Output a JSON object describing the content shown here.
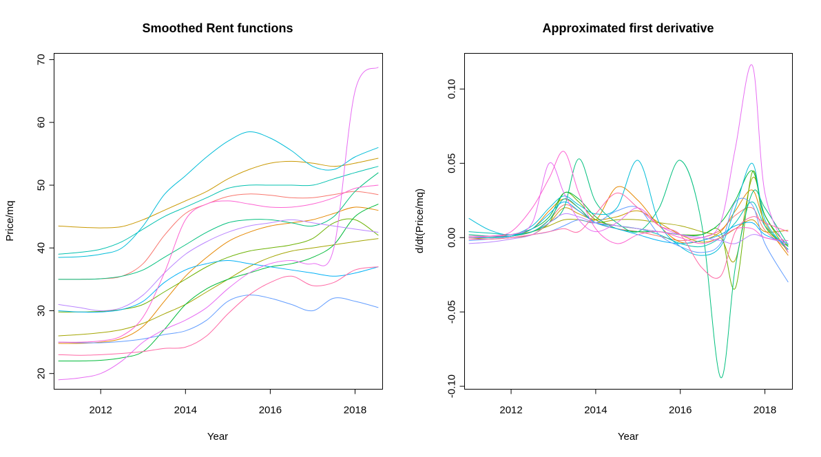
{
  "figure": {
    "palette": [
      "#F8766D",
      "#E58700",
      "#C99800",
      "#A3A500",
      "#6BB100",
      "#00BA38",
      "#00BF7D",
      "#00C0AF",
      "#00BCD8",
      "#00B0F6",
      "#619CFF",
      "#B983FF",
      "#E76BF3",
      "#FD61D1",
      "#FF67A4"
    ]
  },
  "chart_data": [
    {
      "type": "line",
      "title": "Smoothed Rent functions",
      "xlabel": "Year",
      "ylabel": "Price/mq",
      "xlim": [
        2010.9,
        2018.65
      ],
      "ylim": [
        17.5,
        71
      ],
      "xticks": [
        2012,
        2014,
        2016,
        2018
      ],
      "xtick_labels": [
        "2012",
        "2014",
        "2016",
        "2018"
      ],
      "yticks": [
        20,
        30,
        40,
        50,
        60,
        70
      ],
      "ytick_labels": [
        "20",
        "30",
        "40",
        "50",
        "60",
        "70"
      ],
      "grid": false,
      "x": [
        2011.0,
        2011.5,
        2012.0,
        2012.5,
        2013.0,
        2013.5,
        2014.0,
        2014.5,
        2015.0,
        2015.5,
        2016.0,
        2016.5,
        2017.0,
        2017.5,
        2018.0,
        2018.55
      ],
      "series": [
        {
          "color": "#F8766D",
          "values": [
            35.0,
            35.0,
            35.1,
            35.5,
            37.5,
            42.0,
            45.5,
            47.0,
            48.2,
            48.6,
            48.4,
            48.0,
            48.0,
            48.5,
            49.0,
            48.5
          ]
        },
        {
          "color": "#E58700",
          "values": [
            24.8,
            24.8,
            25.0,
            25.6,
            27.5,
            31.5,
            35.5,
            38.5,
            41.0,
            42.5,
            43.5,
            44.0,
            44.5,
            45.5,
            46.5,
            46.0
          ]
        },
        {
          "color": "#C99800",
          "values": [
            43.5,
            43.3,
            43.2,
            43.4,
            44.5,
            46.0,
            47.5,
            49.0,
            51.0,
            52.5,
            53.5,
            53.8,
            53.5,
            53.0,
            53.5,
            54.3
          ]
        },
        {
          "color": "#A3A500",
          "values": [
            26.0,
            26.2,
            26.5,
            27.0,
            28.0,
            29.5,
            31.0,
            33.0,
            35.0,
            37.0,
            38.5,
            39.5,
            40.0,
            40.5,
            41.0,
            41.5
          ]
        },
        {
          "color": "#6BB100",
          "values": [
            29.8,
            29.8,
            29.9,
            30.2,
            31.0,
            33.0,
            35.0,
            37.0,
            38.5,
            39.5,
            40.0,
            40.5,
            41.5,
            44.0,
            44.5,
            42.0
          ]
        },
        {
          "color": "#00BA38",
          "values": [
            22.0,
            22.0,
            22.1,
            22.5,
            23.5,
            27.0,
            31.0,
            33.5,
            35.0,
            36.0,
            37.0,
            37.5,
            38.5,
            40.5,
            45.0,
            47.0
          ]
        },
        {
          "color": "#00BF7D",
          "values": [
            35.0,
            35.0,
            35.1,
            35.5,
            36.5,
            38.5,
            40.5,
            42.5,
            44.0,
            44.5,
            44.5,
            44.0,
            43.5,
            45.0,
            49.0,
            52.0
          ]
        },
        {
          "color": "#00C0AF",
          "values": [
            39.0,
            39.3,
            39.8,
            41.0,
            43.0,
            45.0,
            46.5,
            48.0,
            49.5,
            50.0,
            50.0,
            50.0,
            50.0,
            51.0,
            52.0,
            53.0
          ]
        },
        {
          "color": "#00BCD8",
          "values": [
            38.5,
            38.6,
            39.0,
            40.0,
            43.5,
            48.5,
            51.5,
            54.5,
            57.0,
            58.5,
            57.5,
            55.5,
            53.0,
            52.5,
            54.5,
            56.0
          ]
        },
        {
          "color": "#00B0F6",
          "values": [
            30.0,
            29.8,
            29.8,
            30.2,
            31.5,
            34.5,
            36.5,
            37.5,
            38.0,
            37.5,
            37.0,
            36.5,
            36.0,
            35.5,
            36.0,
            37.0
          ]
        },
        {
          "color": "#619CFF",
          "values": [
            25.0,
            24.9,
            24.9,
            25.1,
            25.5,
            26.2,
            26.8,
            28.5,
            31.5,
            32.5,
            32.0,
            31.0,
            30.0,
            32.0,
            31.5,
            30.5
          ]
        },
        {
          "color": "#B983FF",
          "values": [
            31.0,
            30.5,
            30.0,
            30.5,
            32.5,
            36.0,
            39.0,
            41.0,
            42.5,
            43.5,
            44.0,
            44.5,
            44.0,
            43.5,
            43.0,
            42.5
          ]
        },
        {
          "color": "#E76BF3",
          "values": [
            19.0,
            19.3,
            20.0,
            22.0,
            25.0,
            27.0,
            28.5,
            30.5,
            33.5,
            36.0,
            37.5,
            38.0,
            37.5,
            40.0,
            65.0,
            68.8
          ]
        },
        {
          "color": "#FD61D1",
          "values": [
            25.0,
            25.0,
            25.2,
            26.0,
            29.0,
            36.0,
            44.5,
            47.0,
            47.5,
            47.0,
            46.5,
            46.5,
            47.0,
            48.0,
            49.5,
            50.0
          ]
        },
        {
          "color": "#FF67A4",
          "values": [
            23.0,
            22.9,
            23.0,
            23.2,
            23.5,
            24.0,
            24.2,
            26.0,
            29.5,
            32.5,
            34.5,
            35.5,
            34.0,
            34.5,
            36.5,
            37.0
          ]
        }
      ]
    },
    {
      "type": "line",
      "title": "Approximated first derivative",
      "xlabel": "Year",
      "ylabel": "d/dt(Price/mq)",
      "xlim": [
        2010.9,
        2018.65
      ],
      "ylim": [
        -0.102,
        0.124
      ],
      "xticks": [
        2012,
        2014,
        2016,
        2018
      ],
      "xtick_labels": [
        "2012",
        "2014",
        "2016",
        "2018"
      ],
      "yticks": [
        -0.1,
        -0.05,
        0.0,
        0.05,
        0.1
      ],
      "ytick_labels": [
        "-0.10",
        "-0.05",
        "0.00",
        "0.05",
        "0.10"
      ],
      "grid": false,
      "x": [
        2011.0,
        2011.5,
        2012.0,
        2012.5,
        2012.9,
        2013.25,
        2013.6,
        2014.0,
        2014.5,
        2015.0,
        2015.5,
        2016.0,
        2016.5,
        2016.95,
        2017.3,
        2017.7,
        2018.0,
        2018.55
      ],
      "series": [
        {
          "color": "#F8766D",
          "values": [
            0.0,
            0.0,
            0.001,
            0.004,
            0.012,
            0.022,
            0.018,
            0.01,
            0.006,
            0.004,
            0.001,
            -0.002,
            0.0,
            0.005,
            0.015,
            0.02,
            0.005,
            -0.008
          ]
        },
        {
          "color": "#E58700",
          "values": [
            0.0,
            0.0,
            0.001,
            0.006,
            0.018,
            0.026,
            0.02,
            0.012,
            0.034,
            0.025,
            0.008,
            -0.003,
            -0.002,
            0.004,
            0.018,
            0.032,
            0.01,
            -0.012
          ]
        },
        {
          "color": "#C99800",
          "values": [
            0.0,
            -0.001,
            0.0,
            0.002,
            0.01,
            0.02,
            0.016,
            0.012,
            0.014,
            0.018,
            0.01,
            0.002,
            -0.003,
            0.0,
            0.006,
            0.012,
            0.004,
            0.005
          ]
        },
        {
          "color": "#A3A500",
          "values": [
            0.001,
            0.001,
            0.002,
            0.004,
            0.008,
            0.012,
            0.012,
            0.01,
            0.012,
            0.012,
            0.01,
            0.008,
            0.004,
            0.0,
            -0.015,
            0.04,
            0.015,
            -0.01
          ]
        },
        {
          "color": "#6BB100",
          "values": [
            0.0,
            0.0,
            0.001,
            0.004,
            0.01,
            0.03,
            0.024,
            0.012,
            0.008,
            0.006,
            0.004,
            0.002,
            0.002,
            0.004,
            -0.034,
            0.044,
            0.008,
            -0.006
          ]
        },
        {
          "color": "#00BA38",
          "values": [
            0.0,
            0.0,
            0.002,
            0.006,
            0.014,
            0.03,
            0.026,
            0.014,
            0.006,
            0.004,
            0.004,
            0.002,
            0.002,
            0.01,
            0.025,
            0.045,
            0.015,
            -0.006
          ]
        },
        {
          "color": "#00BF7D",
          "values": [
            0.002,
            0.001,
            0.001,
            0.004,
            0.01,
            0.02,
            0.053,
            0.024,
            0.01,
            0.004,
            0.02,
            0.052,
            0.01,
            -0.094,
            -0.02,
            0.03,
            0.02,
            -0.005
          ]
        },
        {
          "color": "#00C0AF",
          "values": [
            0.004,
            0.003,
            0.002,
            0.004,
            0.012,
            0.026,
            0.02,
            0.01,
            0.008,
            0.006,
            0.002,
            -0.004,
            -0.006,
            0.0,
            0.01,
            0.024,
            0.008,
            -0.008
          ]
        },
        {
          "color": "#00BCD8",
          "values": [
            0.013,
            0.005,
            0.002,
            0.008,
            0.02,
            0.028,
            0.022,
            0.016,
            0.02,
            0.052,
            0.01,
            -0.006,
            -0.012,
            -0.006,
            0.02,
            0.05,
            0.012,
            -0.008
          ]
        },
        {
          "color": "#00B0F6",
          "values": [
            0.0,
            0.0,
            0.001,
            0.006,
            0.016,
            0.024,
            0.018,
            0.01,
            0.006,
            0.002,
            -0.002,
            -0.004,
            -0.002,
            0.002,
            0.008,
            0.01,
            0.002,
            -0.004
          ]
        },
        {
          "color": "#619CFF",
          "values": [
            -0.002,
            -0.001,
            0.0,
            0.002,
            0.004,
            0.008,
            0.012,
            0.01,
            0.018,
            0.02,
            0.002,
            -0.006,
            -0.01,
            -0.004,
            0.024,
            0.022,
            -0.004,
            -0.03
          ]
        },
        {
          "color": "#B983FF",
          "values": [
            -0.004,
            -0.003,
            -0.001,
            0.002,
            0.01,
            0.016,
            0.014,
            0.01,
            0.008,
            0.006,
            0.004,
            0.002,
            0.0,
            -0.002,
            -0.004,
            0.002,
            0.0,
            -0.004
          ]
        },
        {
          "color": "#E76BF3",
          "values": [
            0.001,
            0.001,
            0.002,
            0.01,
            0.05,
            0.03,
            0.012,
            0.004,
            0.01,
            0.02,
            0.008,
            0.002,
            0.0,
            0.01,
            0.06,
            0.116,
            0.03,
            -0.01
          ]
        },
        {
          "color": "#FD61D1",
          "values": [
            0.0,
            0.001,
            0.004,
            0.02,
            0.04,
            0.058,
            0.03,
            0.006,
            -0.004,
            0.002,
            0.004,
            0.0,
            -0.004,
            0.0,
            0.006,
            0.006,
            0.0,
            -0.002
          ]
        },
        {
          "color": "#FF67A4",
          "values": [
            -0.001,
            -0.001,
            0.0,
            0.002,
            0.004,
            0.006,
            0.004,
            0.016,
            0.03,
            0.02,
            0.008,
            0.002,
            -0.02,
            -0.026,
            0.004,
            0.014,
            0.01,
            0.004
          ]
        }
      ]
    }
  ]
}
